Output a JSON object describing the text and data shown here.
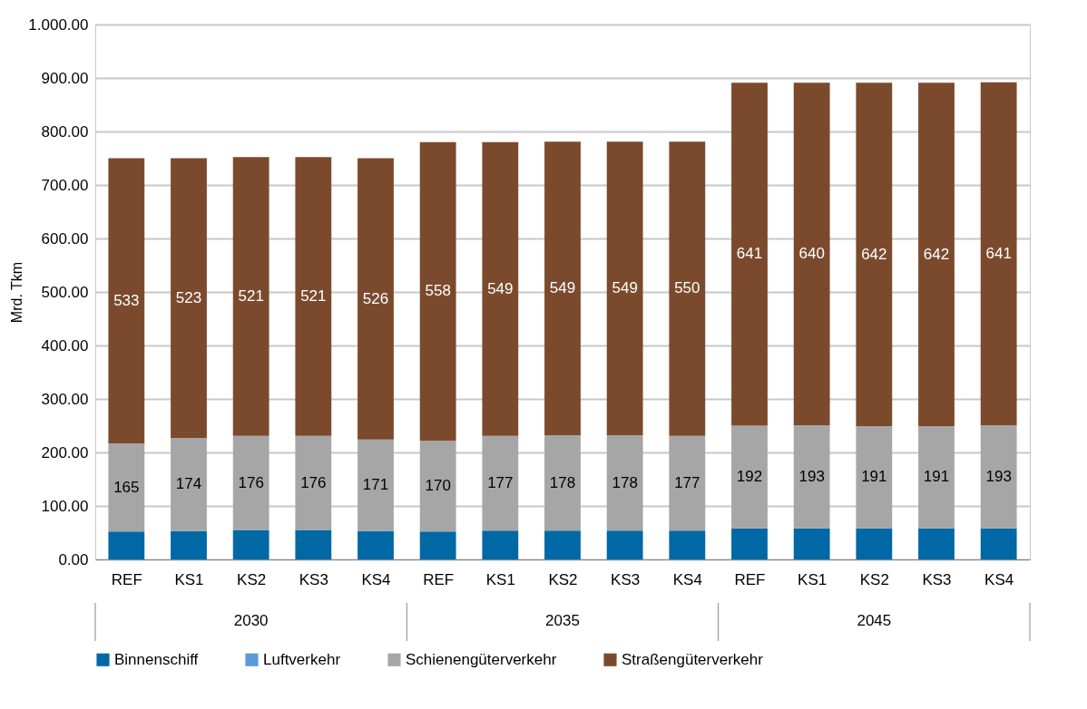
{
  "chart_data": {
    "type": "bar",
    "stacked": true,
    "ylabel": "Mrd. Tkm",
    "categories": [
      "REF",
      "KS1",
      "KS2",
      "KS3",
      "KS4",
      "REF",
      "KS1",
      "KS2",
      "KS3",
      "KS4",
      "REF",
      "KS1",
      "KS2",
      "KS3",
      "KS4"
    ],
    "annotations": [
      "2030",
      "2035",
      "2045"
    ],
    "series": [
      {
        "name": "Binnenschiff",
        "color": "#0068a5",
        "values": [
          52,
          53,
          55,
          55,
          53,
          52,
          54,
          54,
          54,
          54,
          58,
          58,
          58,
          58,
          58
        ]
      },
      {
        "name": "Luftverkehr",
        "color": "#5b9bd5",
        "values": [
          null,
          null,
          null,
          null,
          null,
          null,
          null,
          null,
          null,
          null,
          null,
          null,
          null,
          null,
          null
        ]
      },
      {
        "name": "Schienengüterverkehr",
        "color": "#a6a6a6",
        "values": [
          165,
          174,
          176,
          176,
          171,
          170,
          177,
          178,
          178,
          177,
          192,
          193,
          191,
          191,
          193
        ],
        "value_labels": [
          "165",
          "174",
          "176",
          "176",
          "171",
          "170",
          "177",
          "178",
          "178",
          "177",
          "192",
          "193",
          "191",
          "191",
          "193"
        ]
      },
      {
        "name": "Straßengüterverkehr",
        "color": "#7b4a2d",
        "values": [
          533,
          523,
          521,
          521,
          526,
          558,
          549,
          549,
          549,
          550,
          641,
          640,
          642,
          642,
          641
        ],
        "value_labels": [
          "533",
          "523",
          "521",
          "521",
          "526",
          "558",
          "549",
          "549",
          "549",
          "550",
          "641",
          "640",
          "642",
          "642",
          "641"
        ]
      }
    ],
    "ylim": [
      0,
      1000
    ],
    "yticks": [
      {
        "value": 0,
        "label": "0.00"
      },
      {
        "value": 100,
        "label": "100.00"
      },
      {
        "value": 200,
        "label": "200.00"
      },
      {
        "value": 300,
        "label": "300.00"
      },
      {
        "value": 400,
        "label": "400.00"
      },
      {
        "value": 500,
        "label": "500.00"
      },
      {
        "value": 600,
        "label": "600.00"
      },
      {
        "value": 700,
        "label": "700.00"
      },
      {
        "value": 800,
        "label": "800.00"
      },
      {
        "value": 900,
        "label": "900.00"
      },
      {
        "value": 1000,
        "label": "1.000.00"
      }
    ],
    "grid": true,
    "legend": "bottom"
  }
}
